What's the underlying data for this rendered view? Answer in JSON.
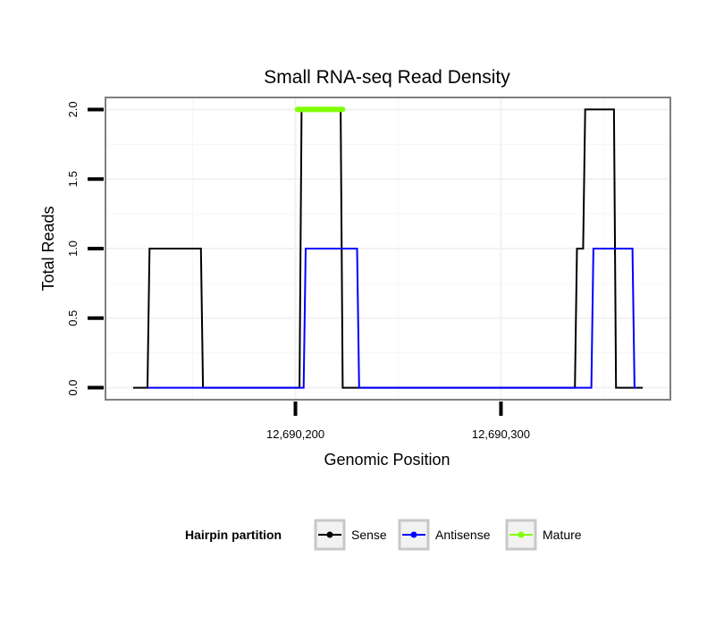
{
  "chart_data": {
    "type": "line",
    "title": "Small RNA-seq Read Density",
    "xlabel": "Genomic Position",
    "ylabel": "Total Reads",
    "xlim": [
      12690108,
      12690382
    ],
    "ylim": [
      -0.08,
      2.08
    ],
    "x_ticks": [
      {
        "value": 12690200,
        "label": "12,690,200"
      },
      {
        "value": 12690300,
        "label": "12,690,300"
      }
    ],
    "y_ticks": [
      {
        "value": 0.0,
        "label": "0.0"
      },
      {
        "value": 0.5,
        "label": "0.5"
      },
      {
        "value": 1.0,
        "label": "1.0"
      },
      {
        "value": 1.5,
        "label": "1.5"
      },
      {
        "value": 2.0,
        "label": "2.0"
      }
    ],
    "grid": true,
    "legend": {
      "title": "Hairpin partition",
      "position": "bottom"
    },
    "series": [
      {
        "name": "Sense",
        "color": "#000000",
        "x": [
          12690121,
          12690128,
          12690129,
          12690154,
          12690155,
          12690202,
          12690203,
          12690222,
          12690223,
          12690336,
          12690337,
          12690340,
          12690341,
          12690355,
          12690356,
          12690369
        ],
        "y": [
          0,
          0,
          1,
          1,
          0,
          0,
          2,
          2,
          0,
          0,
          1,
          1,
          2,
          2,
          0,
          0
        ]
      },
      {
        "name": "Antisense",
        "color": "#0000ff",
        "x": [
          12690128,
          12690204,
          12690205,
          12690230,
          12690231,
          12690344,
          12690345,
          12690364,
          12690365,
          12690366
        ],
        "y": [
          0,
          0,
          1,
          1,
          0,
          0,
          1,
          1,
          0,
          0
        ]
      },
      {
        "name": "Mature",
        "color": "#7fff00",
        "x": [
          12690201,
          12690223
        ],
        "y": [
          2,
          2
        ]
      }
    ]
  }
}
